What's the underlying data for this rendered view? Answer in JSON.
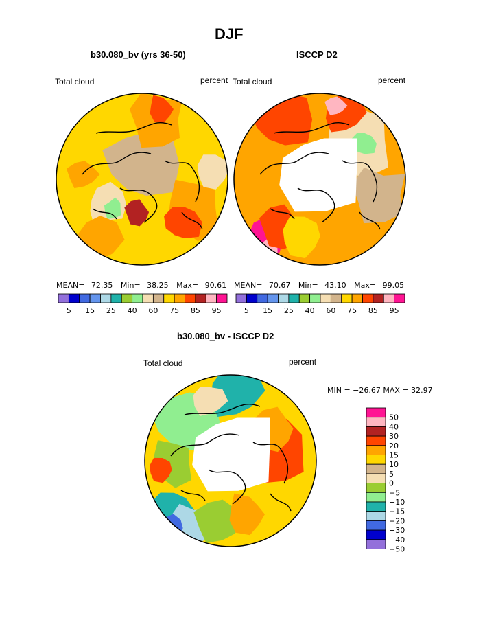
{
  "page": {
    "title": "DJF"
  },
  "colors": {
    "palette": [
      "#9370db",
      "#0000cd",
      "#4169e1",
      "#6495ed",
      "#add8e6",
      "#20b2aa",
      "#9acd32",
      "#90ee90",
      "#f5deb3",
      "#d2b48c",
      "#ffd700",
      "#ffa500",
      "#ff4500",
      "#b22222",
      "#ffb6c1",
      "#ff1493"
    ],
    "diff_palette": [
      "#9370db",
      "#0000cd",
      "#4169e1",
      "#add8e6",
      "#20b2aa",
      "#90ee90",
      "#9acd32",
      "#f5deb3",
      "#d2b48c",
      "#ffd700",
      "#ffa500",
      "#ff4500",
      "#b22222",
      "#ffb6c1",
      "#ff1493"
    ]
  },
  "panels": [
    {
      "title": "b30.080_bv (yrs 36-50)",
      "left_label": "Total cloud",
      "right_label": "percent",
      "mean_label": "MEAN=",
      "mean": "72.35",
      "min_label": "Min=",
      "min": "38.25",
      "max_label": "Max=",
      "max": "90.61"
    },
    {
      "title": "ISCCP D2",
      "left_label": "Total cloud",
      "right_label": "percent",
      "mean_label": "MEAN=",
      "mean": "70.67",
      "min_label": "Min=",
      "min": "43.10",
      "max_label": "Max=",
      "max": "99.05"
    }
  ],
  "colorbar_ticks": [
    "5",
    "15",
    "25",
    "40",
    "60",
    "75",
    "85",
    "95"
  ],
  "diff": {
    "title": "b30.080_bv - ISCCP D2",
    "left_label": "Total cloud",
    "right_label": "percent",
    "minmax": "MIN = −26.67 MAX =  32.97",
    "legend_labels": [
      "50",
      "40",
      "30",
      "20",
      "15",
      "10",
      "5",
      "0",
      "−5",
      "−10",
      "−15",
      "−20",
      "−30",
      "−40",
      "−50"
    ]
  },
  "chart_data": [
    {
      "type": "heatmap",
      "title": "b30.080_bv (yrs 36-50)",
      "projection": "north polar stereographic",
      "variable": "Total cloud",
      "units": "percent",
      "mean": 72.35,
      "min": 38.25,
      "max": 90.61,
      "levels": [
        5,
        15,
        25,
        40,
        60,
        75,
        85,
        95
      ]
    },
    {
      "type": "heatmap",
      "title": "ISCCP D2",
      "projection": "north polar stereographic",
      "variable": "Total cloud",
      "units": "percent",
      "mean": 70.67,
      "min": 43.1,
      "max": 99.05,
      "levels": [
        5,
        15,
        25,
        40,
        60,
        75,
        85,
        95
      ],
      "missing_region": "polar cap (no data)"
    },
    {
      "type": "heatmap",
      "title": "b30.080_bv - ISCCP D2",
      "projection": "north polar stereographic",
      "variable": "Total cloud",
      "units": "percent",
      "min": -26.67,
      "max": 32.97,
      "levels": [
        -50,
        -40,
        -30,
        -20,
        -15,
        -10,
        -5,
        0,
        5,
        10,
        15,
        20,
        30,
        40,
        50
      ]
    }
  ]
}
